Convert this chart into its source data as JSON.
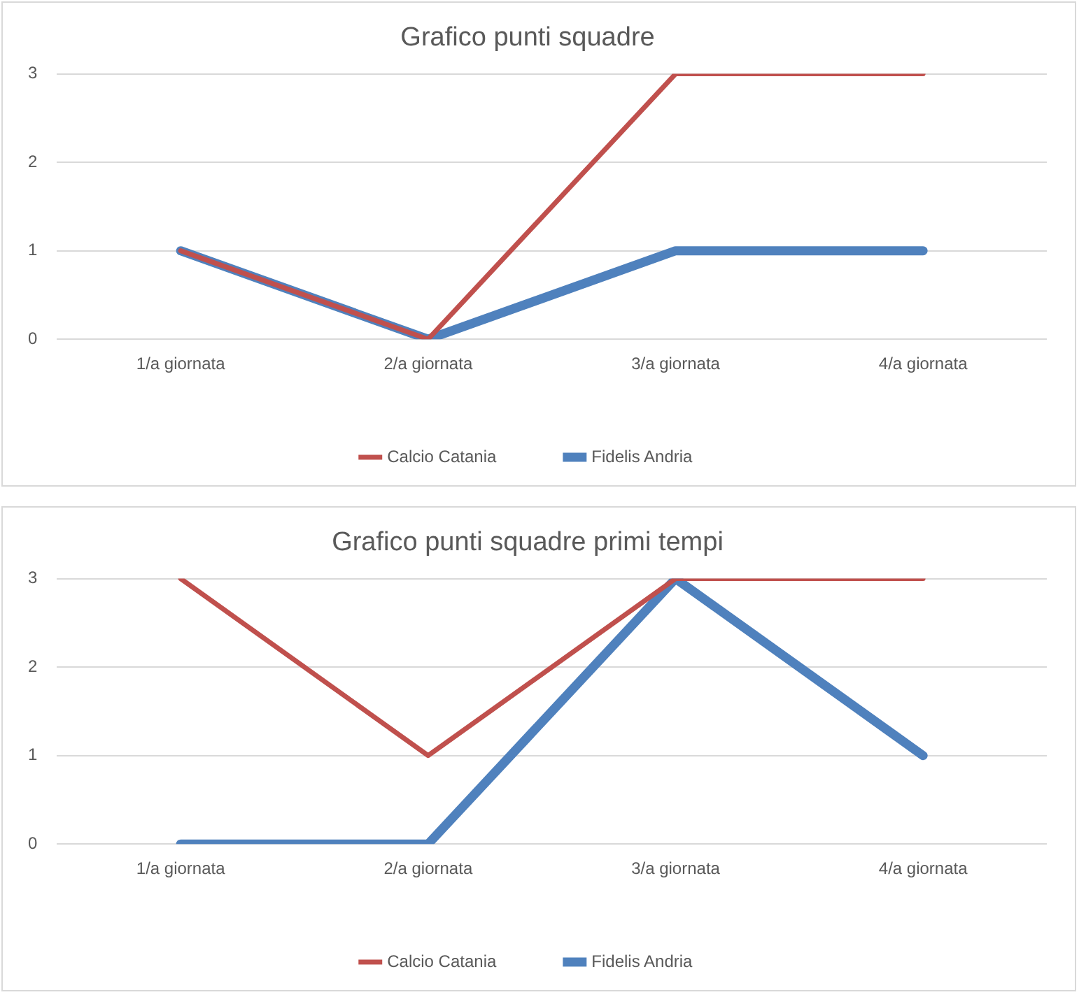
{
  "chart_data": [
    {
      "type": "line",
      "title": "Grafico punti squadre",
      "categories": [
        "1/a giornata",
        "2/a giornata",
        "3/a giornata",
        "4/a giornata"
      ],
      "series": [
        {
          "name": "Fidelis Andria",
          "color": "#4f81bd",
          "values": [
            1,
            0,
            1,
            1
          ]
        },
        {
          "name": "Calcio Catania",
          "color": "#c0504d",
          "values": [
            1,
            0,
            3,
            3
          ]
        }
      ],
      "ylim": [
        0,
        3
      ],
      "yticks": [
        0,
        1,
        2,
        3
      ],
      "grid": "y",
      "legend": "bottom",
      "marker": "none",
      "line_style": "solid"
    },
    {
      "type": "line",
      "title": "Grafico punti squadre primi tempi",
      "categories": [
        "1/a giornata",
        "2/a giornata",
        "3/a giornata",
        "4/a giornata"
      ],
      "series": [
        {
          "name": "Fidelis Andria",
          "color": "#4f81bd",
          "values": [
            0,
            0,
            3,
            1
          ]
        },
        {
          "name": "Calcio Catania",
          "color": "#c0504d",
          "values": [
            3,
            1,
            3,
            3
          ]
        }
      ],
      "ylim": [
        0,
        3
      ],
      "yticks": [
        0,
        1,
        2,
        3
      ],
      "grid": "y",
      "legend": "bottom",
      "marker": "none",
      "line_style": "solid"
    }
  ]
}
